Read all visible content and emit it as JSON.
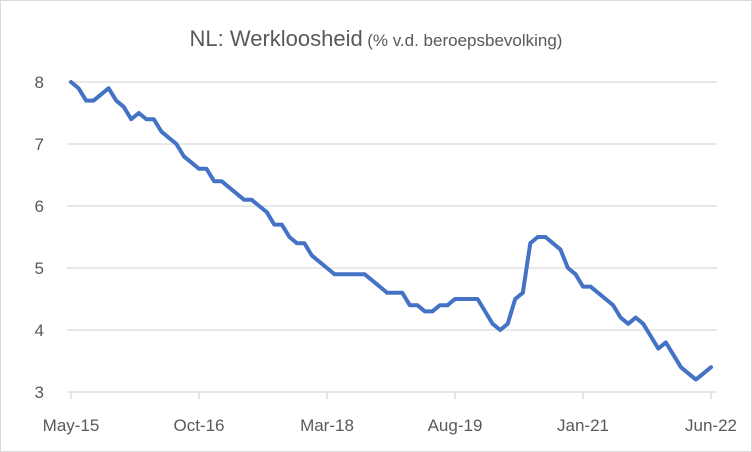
{
  "chart_data": {
    "type": "line",
    "title": "NL: Werkloosheid",
    "subtitle": "(% v.d. beroepsbevolking)",
    "xlabel": "",
    "ylabel": "",
    "ylim": [
      3,
      8
    ],
    "yticks": [
      "3",
      "4",
      "5",
      "6",
      "7",
      "8"
    ],
    "xtick_labels": [
      "May-15",
      "Oct-16",
      "Mar-18",
      "Aug-19",
      "Jan-21",
      "Jun-22"
    ],
    "xtick_indices": [
      0,
      17,
      34,
      51,
      68,
      85
    ],
    "grid": true,
    "x_start": "May-15",
    "x_end": "Jun-22",
    "frequency": "monthly",
    "series": [
      {
        "name": "Werkloosheid",
        "color": "#4472c4",
        "values": [
          8.0,
          7.9,
          7.7,
          7.7,
          7.8,
          7.9,
          7.7,
          7.6,
          7.4,
          7.5,
          7.4,
          7.4,
          7.2,
          7.1,
          7.0,
          6.8,
          6.7,
          6.6,
          6.6,
          6.4,
          6.4,
          6.3,
          6.2,
          6.1,
          6.1,
          6.0,
          5.9,
          5.7,
          5.7,
          5.5,
          5.4,
          5.4,
          5.2,
          5.1,
          5.0,
          4.9,
          4.9,
          4.9,
          4.9,
          4.9,
          4.8,
          4.7,
          4.6,
          4.6,
          4.6,
          4.4,
          4.4,
          4.3,
          4.3,
          4.4,
          4.4,
          4.5,
          4.5,
          4.5,
          4.5,
          4.3,
          4.1,
          4.0,
          4.1,
          4.5,
          4.6,
          5.4,
          5.5,
          5.5,
          5.4,
          5.3,
          5.0,
          4.9,
          4.7,
          4.7,
          4.6,
          4.5,
          4.4,
          4.2,
          4.1,
          4.2,
          4.1,
          3.9,
          3.7,
          3.8,
          3.6,
          3.4,
          3.3,
          3.2,
          3.3,
          3.4
        ]
      }
    ]
  }
}
